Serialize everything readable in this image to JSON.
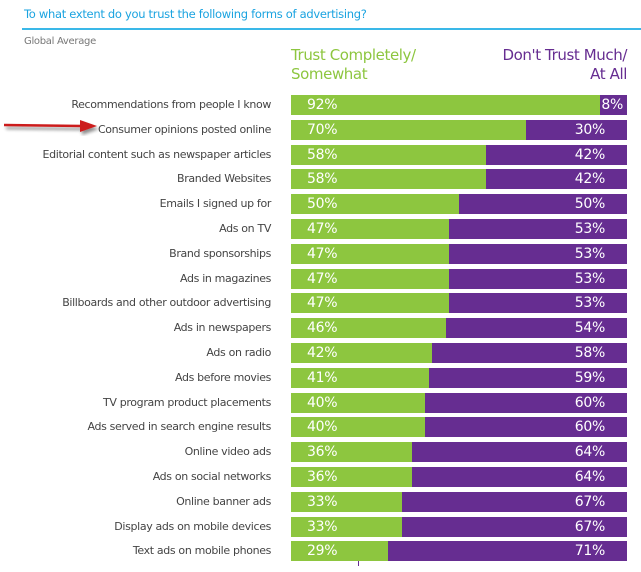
{
  "header": {
    "title": "To what extent do you trust the following forms of advertising?",
    "subtitle": "Global Average"
  },
  "colors": {
    "trust": "#8dc63f",
    "dont_trust": "#662d91",
    "title": "#1aa3e0",
    "arrow": "#cc1f1f"
  },
  "chart_data": {
    "type": "bar",
    "orientation": "horizontal",
    "stacked": true,
    "title": "To what extent do you trust the following forms of advertising?",
    "subtitle": "Global Average",
    "xlim": [
      0,
      100
    ],
    "legend": [
      "Trust Completely/ Somewhat",
      "Don't Trust Much/ At All"
    ],
    "legend_placement": "top",
    "categories": [
      "Recommendations from people I know",
      "Consumer opinions posted online",
      "Editorial content such as newspaper articles",
      "Branded Websites",
      "Emails I signed up for",
      "Ads on TV",
      "Brand sponsorships",
      "Ads in magazines",
      "Billboards and other outdoor advertising",
      "Ads in newspapers",
      "Ads on radio",
      "Ads before movies",
      "TV program product placements",
      "Ads served in search engine results",
      "Online video ads",
      "Ads on social networks",
      "Online banner ads",
      "Display ads on mobile devices",
      "Text ads on mobile phones"
    ],
    "series": [
      {
        "name": "Trust Completely/ Somewhat",
        "values": [
          92,
          70,
          58,
          58,
          50,
          47,
          47,
          47,
          47,
          46,
          42,
          41,
          40,
          40,
          36,
          36,
          33,
          33,
          29
        ]
      },
      {
        "name": "Don't Trust Much/ At All",
        "values": [
          8,
          30,
          42,
          42,
          50,
          53,
          53,
          53,
          53,
          54,
          58,
          59,
          60,
          60,
          64,
          64,
          67,
          67,
          71
        ]
      }
    ],
    "annotations": [
      "arrow pointing at: Consumer opinions posted online"
    ]
  },
  "legend": {
    "trust_line1": "Trust Completely/",
    "trust_line2": "Somewhat",
    "dont_line1": "Don't Trust Much/",
    "dont_line2": "At All"
  }
}
